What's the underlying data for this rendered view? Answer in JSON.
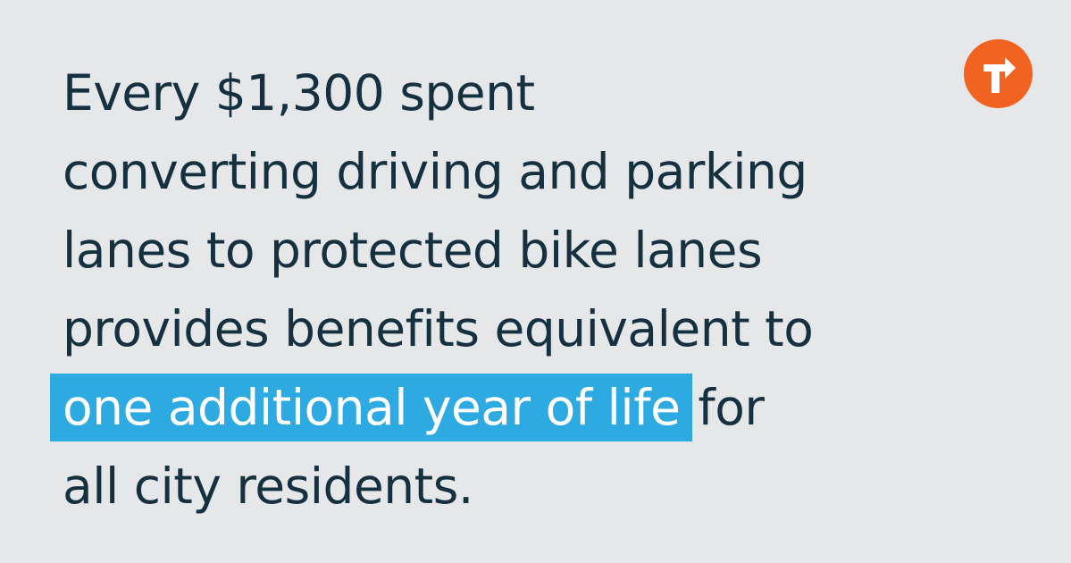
{
  "headline": {
    "lines": [
      "Every $1,300 spent",
      "converting driving and parking",
      "lanes to protected bike lanes",
      "provides benefits equivalent to"
    ],
    "highlight": "one additional year of life",
    "after_highlight": "for",
    "last_line": "all city residents."
  },
  "logo": {
    "icon": "turn-arrow-logo-icon",
    "color": "#f26322"
  },
  "colors": {
    "background": "#e6e7e9",
    "text": "#15303f",
    "highlight_background": "#2eaae3",
    "highlight_text": "#ffffff"
  }
}
